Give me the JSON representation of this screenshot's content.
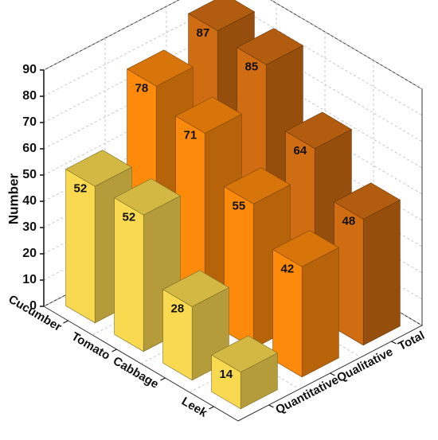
{
  "chart_data": {
    "type": "bar3d",
    "y_axis_label": "Number",
    "categories": [
      "Cucumber",
      "Tomato",
      "Cabbage",
      "Leek"
    ],
    "series": [
      {
        "name": "Quantitative",
        "color": "#f8d94f",
        "values": [
          52,
          52,
          28,
          14
        ]
      },
      {
        "name": "Qualitative",
        "color": "#fe8a0c",
        "values": [
          78,
          71,
          55,
          42
        ]
      },
      {
        "name": "Total",
        "color": "#d06c12",
        "values": [
          87,
          85,
          64,
          48
        ]
      }
    ],
    "ylim": [
      0,
      90
    ],
    "yticks": [
      0,
      10,
      20,
      30,
      40,
      50,
      60,
      70,
      80,
      90
    ],
    "grid": true
  }
}
